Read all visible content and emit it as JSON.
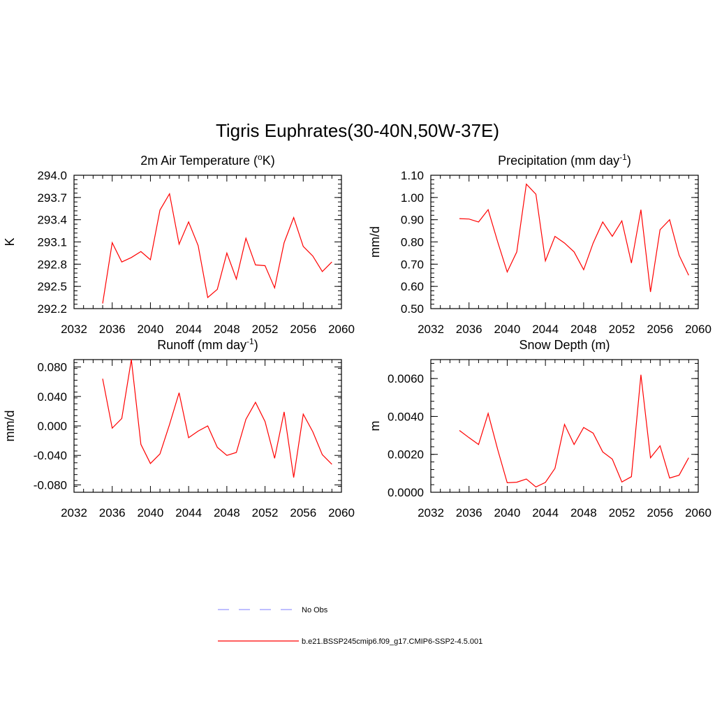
{
  "page_title": "Tigris Euphrates(30-40N,50W-37E)",
  "line_color": "#ff0000",
  "obs_color": "#9999ff",
  "legend": {
    "position": "bottom-center",
    "entries": [
      {
        "label": "No Obs",
        "style": "dashed",
        "color": "#9999ff"
      },
      {
        "label": "b.e21.BSSP245cmip6.f09_g17.CMIP6-SSP2-4.5.001",
        "style": "solid",
        "color": "#ff0000"
      }
    ]
  },
  "chart_data": [
    {
      "type": "line",
      "title": "2m Air Temperature (",
      "title_sup": "o",
      "title_tail": "K)",
      "ylabel": "K",
      "xlim": [
        2032,
        2060
      ],
      "xticks": [
        2032,
        2036,
        2040,
        2044,
        2048,
        2052,
        2056,
        2060
      ],
      "ylim": [
        292.2,
        294.0
      ],
      "yticks": [
        "292.2",
        "292.5",
        "292.8",
        "293.1",
        "293.4",
        "293.7",
        "294.0"
      ],
      "x": [
        2035,
        2036,
        2037,
        2038,
        2039,
        2040,
        2041,
        2042,
        2043,
        2044,
        2045,
        2046,
        2047,
        2048,
        2049,
        2050,
        2051,
        2052,
        2053,
        2054,
        2055,
        2056,
        2057,
        2058,
        2059
      ],
      "values": [
        292.27,
        293.09,
        292.83,
        292.89,
        292.97,
        292.86,
        293.53,
        293.75,
        293.07,
        293.37,
        293.05,
        292.35,
        292.46,
        292.95,
        292.6,
        293.15,
        292.79,
        292.78,
        292.48,
        293.09,
        293.43,
        293.04,
        292.91,
        292.7,
        292.83
      ]
    },
    {
      "type": "line",
      "title": "Precipitation (mm day",
      "title_sup": "-1",
      "title_tail": ")",
      "ylabel": "mm/d",
      "xlim": [
        2032,
        2060
      ],
      "xticks": [
        2032,
        2036,
        2040,
        2044,
        2048,
        2052,
        2056,
        2060
      ],
      "ylim": [
        0.5,
        1.1
      ],
      "yticks": [
        "0.50",
        "0.60",
        "0.70",
        "0.80",
        "0.90",
        "1.00",
        "1.10"
      ],
      "x": [
        2035,
        2036,
        2037,
        2038,
        2039,
        2040,
        2041,
        2042,
        2043,
        2044,
        2045,
        2046,
        2047,
        2048,
        2049,
        2050,
        2051,
        2052,
        2053,
        2054,
        2055,
        2056,
        2057,
        2058,
        2059
      ],
      "values": [
        0.905,
        0.903,
        0.89,
        0.945,
        0.8,
        0.665,
        0.755,
        1.06,
        1.015,
        0.715,
        0.825,
        0.795,
        0.755,
        0.675,
        0.795,
        0.89,
        0.825,
        0.895,
        0.705,
        0.945,
        0.575,
        0.855,
        0.9,
        0.74,
        0.65
      ]
    },
    {
      "type": "line",
      "title": "Runoff (mm day",
      "title_sup": "-1",
      "title_tail": ")",
      "ylabel": "mm/d",
      "xlim": [
        2032,
        2060
      ],
      "xticks": [
        2032,
        2036,
        2040,
        2044,
        2048,
        2052,
        2056,
        2060
      ],
      "ylim": [
        -0.09,
        0.09
      ],
      "yticks": [
        "-0.080",
        "-0.040",
        "0.000",
        "0.040",
        "0.080"
      ],
      "ytick_values": [
        -0.08,
        -0.04,
        0.0,
        0.04,
        0.08
      ],
      "x": [
        2035,
        2036,
        2037,
        2038,
        2039,
        2040,
        2041,
        2042,
        2043,
        2044,
        2045,
        2046,
        2047,
        2048,
        2049,
        2050,
        2051,
        2052,
        2053,
        2054,
        2055,
        2056,
        2057,
        2058,
        2059
      ],
      "values": [
        0.064,
        -0.003,
        0.01,
        0.09,
        -0.025,
        -0.051,
        -0.038,
        0.002,
        0.045,
        -0.016,
        -0.007,
        0.0,
        -0.029,
        -0.04,
        -0.036,
        0.009,
        0.032,
        0.006,
        -0.044,
        0.019,
        -0.07,
        0.016,
        -0.008,
        -0.039,
        -0.052
      ]
    },
    {
      "type": "line",
      "title": "Snow Depth (m)",
      "title_sup": "",
      "title_tail": "",
      "ylabel": "m",
      "xlim": [
        2032,
        2060
      ],
      "xticks": [
        2032,
        2036,
        2040,
        2044,
        2048,
        2052,
        2056,
        2060
      ],
      "ylim": [
        0.0,
        0.007
      ],
      "yticks": [
        "0.0000",
        "0.0020",
        "0.0040",
        "0.0060"
      ],
      "ytick_values": [
        0.0,
        0.002,
        0.004,
        0.006
      ],
      "x": [
        2035,
        2036,
        2037,
        2038,
        2039,
        2040,
        2041,
        2042,
        2043,
        2044,
        2045,
        2046,
        2047,
        2048,
        2049,
        2050,
        2051,
        2052,
        2053,
        2054,
        2055,
        2056,
        2057,
        2058,
        2059
      ],
      "values": [
        0.00326,
        0.00288,
        0.00252,
        0.00416,
        0.00225,
        0.0005,
        0.00053,
        0.0007,
        0.00028,
        0.00052,
        0.00126,
        0.00358,
        0.00252,
        0.00342,
        0.00312,
        0.00213,
        0.00175,
        0.00054,
        0.00082,
        0.0062,
        0.00182,
        0.00245,
        0.00075,
        0.0009,
        0.00182
      ]
    }
  ]
}
